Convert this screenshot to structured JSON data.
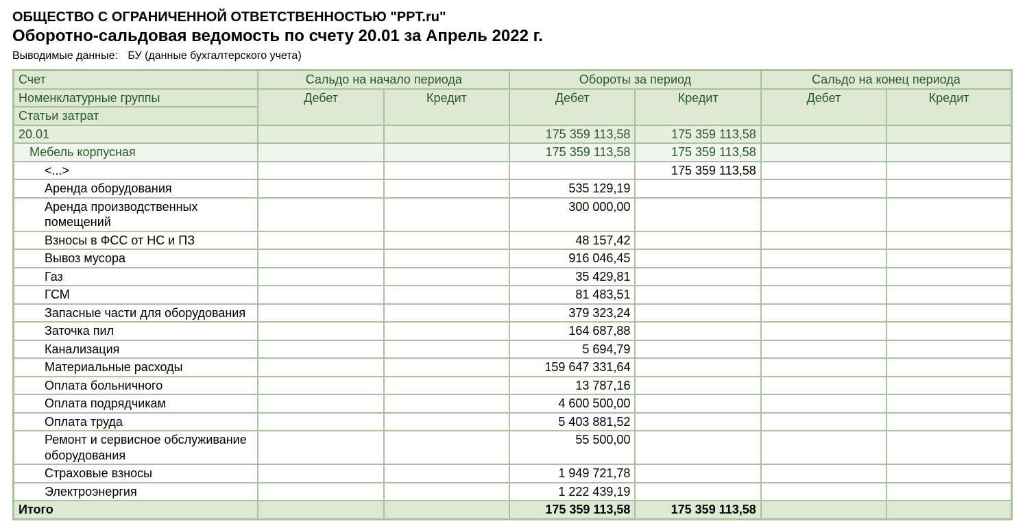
{
  "header": {
    "company": "ОБЩЕСТВО С ОГРАНИЧЕННОЙ ОТВЕТСТВЕННОСТЬЮ \"PPT.ru\"",
    "title": "Оборотно-сальдовая ведомость по счету 20.01 за Апрель 2022 г.",
    "subtitle_label": "Выводимые данные:",
    "subtitle_value": "БУ (данные бухгалтерского учета)"
  },
  "table": {
    "col_widths_pct": [
      24.5,
      12.6,
      12.6,
      12.6,
      12.6,
      12.6,
      12.5
    ],
    "colors": {
      "border": "#a9c1a0",
      "header_bg": "#dde9d3",
      "header_text": "#2a5a2a",
      "lvl0_bg": "#e6efdd",
      "lvl1_bg": "#f1f6ec",
      "lvl2_bg": "#ffffff",
      "total_bg": "#dde9d3",
      "body_text": "#000000",
      "group_text": "#2a5a2a"
    },
    "header_rows": {
      "top": {
        "account": "Счет",
        "opening": "Сальдо на начало периода",
        "turnover": "Обороты за период",
        "closing": "Сальдо на конец периода"
      },
      "sub": {
        "groups": "Номенклатурные группы",
        "debit": "Дебет",
        "credit": "Кредит"
      },
      "third": {
        "cost_items": "Статьи затрат"
      }
    },
    "rows": [
      {
        "level": 0,
        "label": "20.01",
        "open_d": "",
        "open_c": "",
        "turn_d": "175 359 113,58",
        "turn_c": "175 359 113,58",
        "close_d": "",
        "close_c": ""
      },
      {
        "level": 1,
        "label": "Мебель корпусная",
        "open_d": "",
        "open_c": "",
        "turn_d": "175 359 113,58",
        "turn_c": "175 359 113,58",
        "close_d": "",
        "close_c": ""
      },
      {
        "level": 2,
        "label": "<...>",
        "open_d": "",
        "open_c": "",
        "turn_d": "",
        "turn_c": "175 359 113,58",
        "close_d": "",
        "close_c": ""
      },
      {
        "level": 2,
        "label": "Аренда оборудования",
        "open_d": "",
        "open_c": "",
        "turn_d": "535 129,19",
        "turn_c": "",
        "close_d": "",
        "close_c": ""
      },
      {
        "level": 2,
        "label": "Аренда производственных помещений",
        "open_d": "",
        "open_c": "",
        "turn_d": "300 000,00",
        "turn_c": "",
        "close_d": "",
        "close_c": ""
      },
      {
        "level": 2,
        "label": "Взносы в ФСС от НС и ПЗ",
        "open_d": "",
        "open_c": "",
        "turn_d": "48 157,42",
        "turn_c": "",
        "close_d": "",
        "close_c": ""
      },
      {
        "level": 2,
        "label": "Вывоз мусора",
        "open_d": "",
        "open_c": "",
        "turn_d": "916 046,45",
        "turn_c": "",
        "close_d": "",
        "close_c": ""
      },
      {
        "level": 2,
        "label": "Газ",
        "open_d": "",
        "open_c": "",
        "turn_d": "35 429,81",
        "turn_c": "",
        "close_d": "",
        "close_c": ""
      },
      {
        "level": 2,
        "label": "ГСМ",
        "open_d": "",
        "open_c": "",
        "turn_d": "81 483,51",
        "turn_c": "",
        "close_d": "",
        "close_c": ""
      },
      {
        "level": 2,
        "label": "Запасные части для оборудования",
        "open_d": "",
        "open_c": "",
        "turn_d": "379 323,24",
        "turn_c": "",
        "close_d": "",
        "close_c": ""
      },
      {
        "level": 2,
        "label": "Заточка пил",
        "open_d": "",
        "open_c": "",
        "turn_d": "164 687,88",
        "turn_c": "",
        "close_d": "",
        "close_c": ""
      },
      {
        "level": 2,
        "label": "Канализация",
        "open_d": "",
        "open_c": "",
        "turn_d": "5 694,79",
        "turn_c": "",
        "close_d": "",
        "close_c": ""
      },
      {
        "level": 2,
        "label": "Материальные расходы",
        "open_d": "",
        "open_c": "",
        "turn_d": "159 647 331,64",
        "turn_c": "",
        "close_d": "",
        "close_c": ""
      },
      {
        "level": 2,
        "label": "Оплата больничного",
        "open_d": "",
        "open_c": "",
        "turn_d": "13 787,16",
        "turn_c": "",
        "close_d": "",
        "close_c": ""
      },
      {
        "level": 2,
        "label": "Оплата подрядчикам",
        "open_d": "",
        "open_c": "",
        "turn_d": "4 600 500,00",
        "turn_c": "",
        "close_d": "",
        "close_c": ""
      },
      {
        "level": 2,
        "label": "Оплата труда",
        "open_d": "",
        "open_c": "",
        "turn_d": "5 403 881,52",
        "turn_c": "",
        "close_d": "",
        "close_c": ""
      },
      {
        "level": 2,
        "label": "Ремонт и сервисное обслуживание оборудования",
        "open_d": "",
        "open_c": "",
        "turn_d": "55 500,00",
        "turn_c": "",
        "close_d": "",
        "close_c": ""
      },
      {
        "level": 2,
        "label": "Страховые взносы",
        "open_d": "",
        "open_c": "",
        "turn_d": "1 949 721,78",
        "turn_c": "",
        "close_d": "",
        "close_c": ""
      },
      {
        "level": 2,
        "label": "Электроэнергия",
        "open_d": "",
        "open_c": "",
        "turn_d": "1 222 439,19",
        "turn_c": "",
        "close_d": "",
        "close_c": ""
      }
    ],
    "total": {
      "label": "Итого",
      "open_d": "",
      "open_c": "",
      "turn_d": "175 359 113,58",
      "turn_c": "175 359 113,58",
      "close_d": "",
      "close_c": ""
    }
  }
}
